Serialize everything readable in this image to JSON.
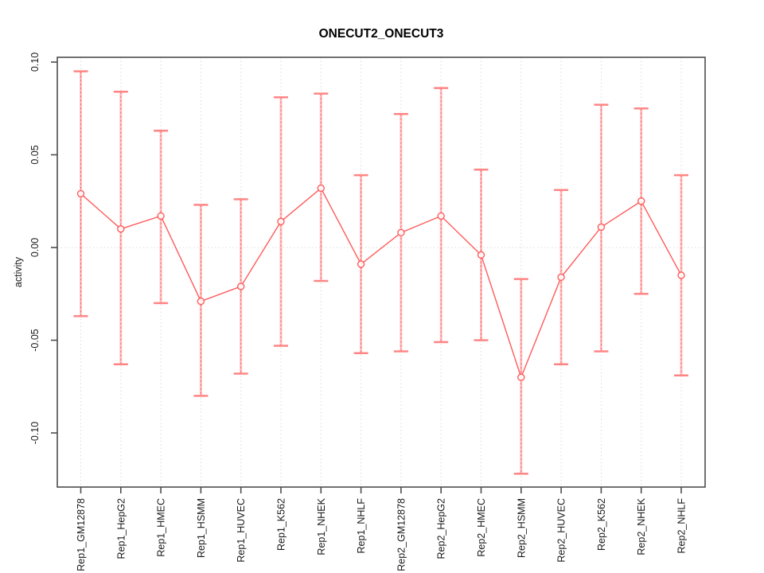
{
  "title": "ONECUT2_ONECUT3",
  "chart_data": {
    "type": "line",
    "subtype": "point-estimates-with-error-bars",
    "title": "ONECUT2_ONECUT3",
    "xlabel": "",
    "ylabel": "activity",
    "categories": [
      "Rep1_GM12878",
      "Rep1_HepG2",
      "Rep1_HMEC",
      "Rep1_HSMM",
      "Rep1_HUVEC",
      "Rep1_K562",
      "Rep1_NHEK",
      "Rep1_NHLF",
      "Rep2_GM12878",
      "Rep2_HepG2",
      "Rep2_HMEC",
      "Rep2_HSMM",
      "Rep2_HUVEC",
      "Rep2_K562",
      "Rep2_NHEK",
      "Rep2_NHLF"
    ],
    "series": [
      {
        "name": "activity",
        "values": [
          0.029,
          0.01,
          0.017,
          -0.029,
          -0.021,
          0.014,
          0.032,
          -0.009,
          0.008,
          0.017,
          -0.004,
          -0.07,
          -0.016,
          0.011,
          0.025,
          -0.015
        ],
        "error_low": [
          -0.037,
          -0.063,
          -0.03,
          -0.08,
          -0.068,
          -0.053,
          -0.018,
          -0.057,
          -0.056,
          -0.051,
          -0.05,
          -0.122,
          -0.063,
          -0.056,
          -0.025,
          -0.069
        ],
        "error_high": [
          0.095,
          0.084,
          0.063,
          0.023,
          0.026,
          0.081,
          0.083,
          0.039,
          0.072,
          0.086,
          0.042,
          -0.017,
          0.031,
          0.077,
          0.075,
          0.039
        ]
      }
    ],
    "ylim": [
      -0.129,
      0.103
    ],
    "yticks": [
      0.1,
      0.05,
      0.0,
      -0.05,
      -0.1
    ],
    "ytick_labels": [
      "0.10",
      "0.05",
      "0.00",
      "-0.05",
      "-0.10"
    ],
    "grid": "dotted vertical gridline per category; dotted horizontal line at y=0",
    "legend_position": "none",
    "colors": {
      "point": "#ff5a5a",
      "line": "#ff5a5a",
      "error_bar_band": "#ffb3b3",
      "error_bar_core": "#ff6666",
      "error_bar_cap": "#ff8585",
      "gridline": "#dcdcdc",
      "axis": "#4d4d4d",
      "text": "#1a1a1a"
    }
  }
}
